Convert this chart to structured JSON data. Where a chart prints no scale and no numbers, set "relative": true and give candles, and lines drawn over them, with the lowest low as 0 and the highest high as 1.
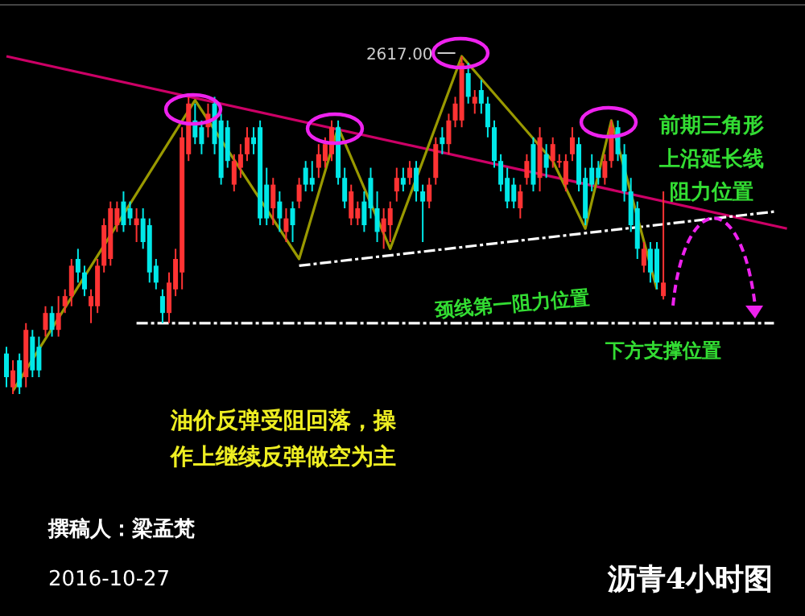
{
  "chart_data": {
    "type": "candlestick",
    "relative": true,
    "title": "沥青4小时图",
    "categories": [
      null,
      null,
      null,
      null,
      null,
      null,
      null,
      null,
      null,
      null,
      null,
      null,
      null,
      null,
      null,
      null,
      null,
      null,
      null,
      null,
      null,
      null,
      null,
      null,
      null,
      null,
      null,
      null,
      null,
      null,
      null,
      null,
      null,
      null,
      null,
      null,
      null,
      null,
      null,
      null,
      null,
      null,
      null,
      null,
      null,
      null,
      null,
      null,
      null,
      null,
      null,
      null,
      null,
      null,
      null,
      null,
      null,
      null,
      null,
      null,
      null,
      null,
      null,
      null,
      null,
      null,
      null,
      null,
      null,
      null,
      null,
      null,
      null,
      null,
      null,
      null,
      null,
      null,
      null,
      null,
      null,
      null,
      null,
      null,
      null,
      null,
      null,
      null,
      null,
      null,
      null,
      null,
      null,
      null,
      null,
      null,
      null,
      null,
      null,
      null,
      null,
      null,
      null,
      null,
      null,
      null,
      null,
      null,
      null,
      null,
      null,
      null,
      null,
      null,
      null,
      null,
      null,
      null,
      null,
      null,
      null
    ],
    "ohlc": [
      [
        0.12,
        0.14,
        0.02,
        0.05
      ],
      [
        0.02,
        0.1,
        0.0,
        0.07
      ],
      [
        0.1,
        0.12,
        0.0,
        0.02
      ],
      [
        0.05,
        0.21,
        0.02,
        0.19
      ],
      [
        0.17,
        0.19,
        0.05,
        0.07
      ],
      [
        0.14,
        0.17,
        0.05,
        0.07
      ],
      [
        0.19,
        0.26,
        0.17,
        0.24
      ],
      [
        0.24,
        0.26,
        0.17,
        0.19
      ],
      [
        0.19,
        0.29,
        0.17,
        0.24
      ],
      [
        0.26,
        0.31,
        0.24,
        0.29
      ],
      [
        0.29,
        0.4,
        0.26,
        0.38
      ],
      [
        0.4,
        0.43,
        0.33,
        0.36
      ],
      [
        0.36,
        0.38,
        0.29,
        0.31
      ],
      [
        0.26,
        0.31,
        0.21,
        0.29
      ],
      [
        0.26,
        0.4,
        0.24,
        0.38
      ],
      [
        0.38,
        0.52,
        0.36,
        0.5
      ],
      [
        0.4,
        0.57,
        0.38,
        0.55
      ],
      [
        0.5,
        0.57,
        0.48,
        0.55
      ],
      [
        0.57,
        0.6,
        0.48,
        0.5
      ],
      [
        0.55,
        0.57,
        0.5,
        0.52
      ],
      [
        0.5,
        0.55,
        0.45,
        0.52
      ],
      [
        0.52,
        0.55,
        0.43,
        0.45
      ],
      [
        0.5,
        0.52,
        0.33,
        0.36
      ],
      [
        0.38,
        0.4,
        0.31,
        0.33
      ],
      [
        0.29,
        0.31,
        0.21,
        0.24
      ],
      [
        0.24,
        0.36,
        0.21,
        0.33
      ],
      [
        0.31,
        0.43,
        0.29,
        0.4
      ],
      [
        0.36,
        0.79,
        0.31,
        0.76
      ],
      [
        0.71,
        0.88,
        0.69,
        0.86
      ],
      [
        0.81,
        0.86,
        0.74,
        0.76
      ],
      [
        0.79,
        0.81,
        0.71,
        0.74
      ],
      [
        0.79,
        0.86,
        0.76,
        0.83
      ],
      [
        0.86,
        0.88,
        0.71,
        0.74
      ],
      [
        0.81,
        0.83,
        0.62,
        0.64
      ],
      [
        0.79,
        0.81,
        0.67,
        0.69
      ],
      [
        0.62,
        0.71,
        0.6,
        0.69
      ],
      [
        0.67,
        0.74,
        0.64,
        0.71
      ],
      [
        0.71,
        0.79,
        0.69,
        0.76
      ],
      [
        0.76,
        0.79,
        0.71,
        0.74
      ],
      [
        0.79,
        0.81,
        0.5,
        0.52
      ],
      [
        0.62,
        0.67,
        0.5,
        0.52
      ],
      [
        0.55,
        0.64,
        0.5,
        0.62
      ],
      [
        0.57,
        0.6,
        0.48,
        0.52
      ],
      [
        0.48,
        0.55,
        0.45,
        0.52
      ],
      [
        0.55,
        0.57,
        0.45,
        0.5
      ],
      [
        0.57,
        0.64,
        0.55,
        0.62
      ],
      [
        0.67,
        0.69,
        0.6,
        0.62
      ],
      [
        0.64,
        0.69,
        0.6,
        0.62
      ],
      [
        0.67,
        0.74,
        0.64,
        0.71
      ],
      [
        0.69,
        0.76,
        0.67,
        0.74
      ],
      [
        0.71,
        0.81,
        0.69,
        0.79
      ],
      [
        0.79,
        0.81,
        0.62,
        0.64
      ],
      [
        0.64,
        0.67,
        0.55,
        0.57
      ],
      [
        0.52,
        0.62,
        0.5,
        0.6
      ],
      [
        0.52,
        0.57,
        0.5,
        0.55
      ],
      [
        0.57,
        0.6,
        0.48,
        0.5
      ],
      [
        0.64,
        0.67,
        0.52,
        0.55
      ],
      [
        0.55,
        0.6,
        0.45,
        0.48
      ],
      [
        0.48,
        0.55,
        0.43,
        0.52
      ],
      [
        0.5,
        0.57,
        0.45,
        0.55
      ],
      [
        0.6,
        0.67,
        0.57,
        0.64
      ],
      [
        0.64,
        0.67,
        0.6,
        0.62
      ],
      [
        0.64,
        0.69,
        0.62,
        0.67
      ],
      [
        0.67,
        0.69,
        0.57,
        0.6
      ],
      [
        0.6,
        0.62,
        0.45,
        0.57
      ],
      [
        0.57,
        0.64,
        0.55,
        0.62
      ],
      [
        0.64,
        0.76,
        0.62,
        0.74
      ],
      [
        0.76,
        0.79,
        0.71,
        0.74
      ],
      [
        0.74,
        0.83,
        0.71,
        0.81
      ],
      [
        0.81,
        0.88,
        0.79,
        0.86
      ],
      [
        0.81,
        1.0,
        0.79,
        0.98
      ],
      [
        0.95,
        0.98,
        0.86,
        0.88
      ],
      [
        0.86,
        0.9,
        0.83,
        0.88
      ],
      [
        0.9,
        0.93,
        0.83,
        0.86
      ],
      [
        0.86,
        0.88,
        0.76,
        0.79
      ],
      [
        0.79,
        0.81,
        0.67,
        0.69
      ],
      [
        0.69,
        0.71,
        0.6,
        0.62
      ],
      [
        0.64,
        0.67,
        0.55,
        0.57
      ],
      [
        0.62,
        0.64,
        0.55,
        0.57
      ],
      [
        0.55,
        0.62,
        0.52,
        0.6
      ],
      [
        0.64,
        0.71,
        0.62,
        0.69
      ],
      [
        0.74,
        0.76,
        0.6,
        0.62
      ],
      [
        0.64,
        0.79,
        0.6,
        0.76
      ],
      [
        0.71,
        0.74,
        0.64,
        0.67
      ],
      [
        0.69,
        0.76,
        0.67,
        0.74
      ],
      [
        0.69,
        0.71,
        0.67,
        0.69
      ],
      [
        0.62,
        0.71,
        0.6,
        0.69
      ],
      [
        0.71,
        0.79,
        0.69,
        0.76
      ],
      [
        0.74,
        0.76,
        0.6,
        0.62
      ],
      [
        0.64,
        0.67,
        0.5,
        0.52
      ],
      [
        0.67,
        0.71,
        0.6,
        0.62
      ],
      [
        0.67,
        0.69,
        0.62,
        0.64
      ],
      [
        0.64,
        0.71,
        0.62,
        0.69
      ],
      [
        0.69,
        0.81,
        0.67,
        0.79
      ],
      [
        0.79,
        0.81,
        0.69,
        0.71
      ],
      [
        0.71,
        0.74,
        0.57,
        0.6
      ],
      [
        0.6,
        0.64,
        0.48,
        0.5
      ],
      [
        0.55,
        0.57,
        0.4,
        0.43
      ],
      [
        0.38,
        0.45,
        0.36,
        0.43
      ],
      [
        0.43,
        0.45,
        0.33,
        0.36
      ],
      [
        0.43,
        0.45,
        0.31,
        0.33
      ],
      [
        0.29,
        0.6,
        0.28,
        0.33
      ],
      null,
      null,
      null,
      null,
      null,
      null,
      null,
      null,
      null,
      null,
      null,
      null,
      null,
      null,
      null,
      null,
      null,
      null,
      null
    ],
    "series": [
      {
        "type": "line",
        "color": "#cc0066",
        "line_style": "solid",
        "values": [
          1.0,
          null,
          null,
          null,
          null,
          null,
          null,
          null,
          null,
          null,
          null,
          null,
          null,
          null,
          null,
          null,
          null,
          null,
          null,
          null,
          null,
          null,
          null,
          null,
          null,
          null,
          null,
          null,
          null,
          null,
          null,
          null,
          null,
          null,
          null,
          null,
          null,
          null,
          null,
          null,
          null,
          null,
          null,
          null,
          null,
          null,
          null,
          null,
          null,
          null,
          null,
          null,
          null,
          null,
          null,
          null,
          null,
          null,
          null,
          null,
          null,
          null,
          null,
          null,
          null,
          null,
          null,
          null,
          null,
          null,
          null,
          null,
          null,
          null,
          null,
          null,
          null,
          null,
          null,
          null,
          null,
          null,
          null,
          null,
          null,
          null,
          null,
          null,
          null,
          null,
          null,
          null,
          null,
          null,
          null,
          null,
          null,
          null,
          null,
          null,
          null,
          null,
          null,
          null,
          null,
          null,
          null,
          null,
          null,
          null,
          null,
          null,
          null,
          null,
          null,
          null,
          null,
          null,
          null,
          null,
          0.49
        ]
      },
      {
        "type": "line",
        "color": "#ffffff",
        "line_style": "dashed",
        "values": [
          null,
          null,
          null,
          null,
          null,
          null,
          null,
          null,
          null,
          null,
          null,
          null,
          null,
          null,
          null,
          null,
          null,
          null,
          null,
          null,
          null,
          null,
          null,
          null,
          null,
          null,
          null,
          null,
          null,
          null,
          null,
          null,
          null,
          null,
          null,
          null,
          null,
          null,
          null,
          null,
          null,
          null,
          null,
          null,
          null,
          0.38,
          null,
          null,
          null,
          null,
          null,
          null,
          null,
          null,
          null,
          null,
          null,
          null,
          null,
          null,
          null,
          null,
          null,
          null,
          null,
          null,
          null,
          null,
          null,
          null,
          null,
          null,
          null,
          null,
          null,
          null,
          null,
          null,
          null,
          null,
          null,
          null,
          null,
          null,
          null,
          null,
          null,
          null,
          null,
          null,
          null,
          null,
          null,
          null,
          null,
          null,
          null,
          null,
          null,
          null,
          null,
          null,
          null,
          null,
          null,
          null,
          null,
          null,
          null,
          null,
          null,
          null,
          null,
          null,
          null,
          null,
          null,
          null,
          0.54,
          null,
          null
        ]
      },
      {
        "type": "line",
        "color": "#ffffff",
        "line_style": "dashed",
        "values": [
          null,
          null,
          null,
          null,
          null,
          null,
          null,
          null,
          null,
          null,
          null,
          null,
          null,
          null,
          null,
          null,
          null,
          null,
          null,
          null,
          0.21,
          null,
          null,
          null,
          null,
          null,
          null,
          null,
          null,
          null,
          null,
          null,
          null,
          null,
          null,
          null,
          null,
          null,
          null,
          null,
          null,
          null,
          null,
          null,
          null,
          null,
          null,
          null,
          null,
          null,
          null,
          null,
          null,
          null,
          null,
          null,
          null,
          null,
          null,
          null,
          null,
          null,
          null,
          null,
          null,
          null,
          null,
          null,
          null,
          null,
          null,
          null,
          null,
          null,
          null,
          null,
          null,
          null,
          null,
          null,
          null,
          null,
          null,
          null,
          null,
          null,
          null,
          null,
          null,
          null,
          null,
          null,
          null,
          null,
          null,
          null,
          null,
          null,
          null,
          null,
          null,
          null,
          null,
          null,
          null,
          null,
          null,
          null,
          null,
          null,
          null,
          null,
          null,
          null,
          null,
          null,
          null,
          null,
          0.21,
          null,
          null
        ]
      },
      {
        "type": "line",
        "color": "#999900",
        "line_style": "solid",
        "values": [
          null,
          0.01,
          null,
          null,
          null,
          null,
          null,
          null,
          null,
          null,
          null,
          null,
          null,
          null,
          null,
          null,
          null,
          null,
          null,
          null,
          null,
          null,
          null,
          null,
          null,
          null,
          null,
          null,
          null,
          0.87,
          null,
          null,
          null,
          null,
          null,
          null,
          null,
          null,
          null,
          null,
          null,
          null,
          null,
          null,
          null,
          0.4,
          null,
          null,
          null,
          null,
          null,
          0.79,
          null,
          null,
          null,
          null,
          null,
          null,
          null,
          0.43,
          null,
          null,
          null,
          null,
          null,
          null,
          null,
          null,
          null,
          null,
          1.0,
          null,
          null,
          null,
          null,
          null,
          null,
          null,
          null,
          null,
          null,
          null,
          null,
          null,
          0.69,
          null,
          null,
          null,
          null,
          0.49,
          null,
          null,
          null,
          0.81,
          null,
          null,
          null,
          null,
          null,
          null,
          0.31,
          null,
          null,
          null,
          null,
          null,
          null,
          null,
          null,
          null,
          null,
          null,
          null,
          null,
          null,
          null,
          null,
          null,
          null,
          null,
          null
        ]
      }
    ],
    "annotations": [
      "2617.00",
      "前期三角形上沿延长线阻力位置",
      "颈线第一阻力位置",
      "下方支撑位置",
      "油价反弹受阻回落，操作上继续反弹做空为主",
      "撰稿人：梁孟梵",
      "2016-10-27"
    ]
  }
}
